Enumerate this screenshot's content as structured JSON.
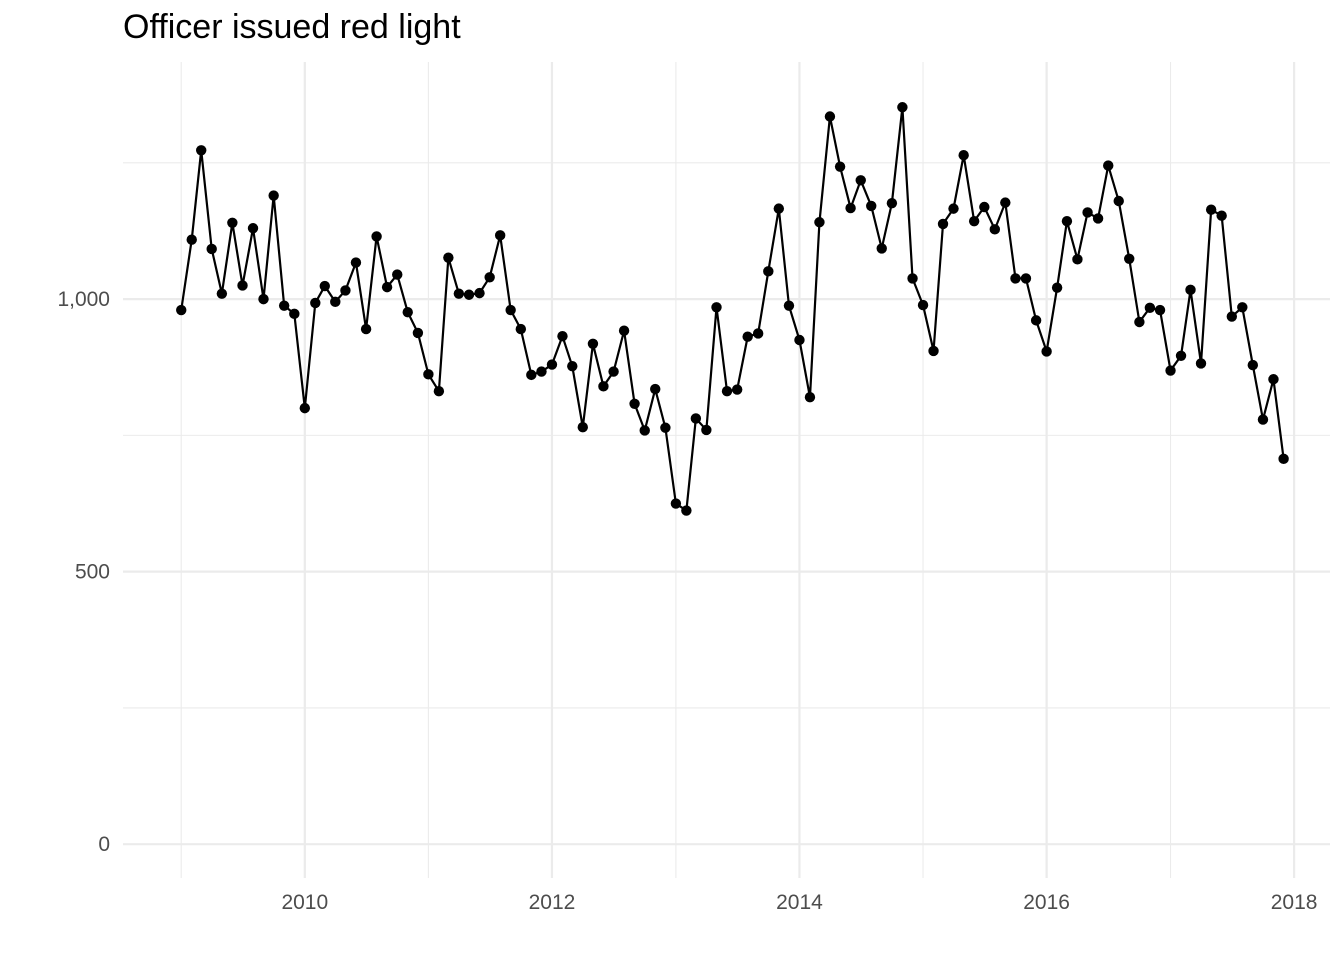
{
  "chart_data": {
    "type": "line",
    "title": "Officer issued red light",
    "xlabel": "",
    "ylabel": "",
    "x_axis": {
      "type": "date",
      "range": [
        "2008-07-13",
        "2018-04-17"
      ],
      "ticks": [
        {
          "date": "2010-01-01",
          "label": "2010"
        },
        {
          "date": "2012-01-01",
          "label": "2012"
        },
        {
          "date": "2014-01-01",
          "label": "2014"
        },
        {
          "date": "2016-01-01",
          "label": "2016"
        },
        {
          "date": "2018-01-01",
          "label": "2018"
        }
      ],
      "minor_ticks": [
        "2009-01-01",
        "2011-01-01",
        "2013-01-01",
        "2015-01-01",
        "2017-01-01"
      ]
    },
    "y_axis": {
      "range": [
        -62,
        1435
      ],
      "ticks": [
        {
          "value": 0,
          "label": "0"
        },
        {
          "value": 500,
          "label": "500"
        },
        {
          "value": 1000,
          "label": "1,000"
        }
      ],
      "minor_ticks": [
        250,
        750,
        1250
      ]
    },
    "grid": true,
    "legend": "none",
    "line_color": "#000000",
    "series": [
      {
        "x": [
          "2009-01-01",
          "2009-02-01",
          "2009-03-01",
          "2009-04-01",
          "2009-05-01",
          "2009-06-01",
          "2009-07-01",
          "2009-08-01",
          "2009-09-01",
          "2009-10-01",
          "2009-11-01",
          "2009-12-01",
          "2010-01-01",
          "2010-02-01",
          "2010-03-01",
          "2010-04-01",
          "2010-05-01",
          "2010-06-01",
          "2010-07-01",
          "2010-08-01",
          "2010-09-01",
          "2010-10-01",
          "2010-11-01",
          "2010-12-01",
          "2011-01-01",
          "2011-02-01",
          "2011-03-01",
          "2011-04-01",
          "2011-05-01",
          "2011-06-01",
          "2011-07-01",
          "2011-08-01",
          "2011-09-01",
          "2011-10-01",
          "2011-11-01",
          "2011-12-01",
          "2012-01-01",
          "2012-02-01",
          "2012-03-01",
          "2012-04-01",
          "2012-05-01",
          "2012-06-01",
          "2012-07-01",
          "2012-08-01",
          "2012-09-01",
          "2012-10-01",
          "2012-11-01",
          "2012-12-01",
          "2013-01-01",
          "2013-02-01",
          "2013-03-01",
          "2013-04-01",
          "2013-05-01",
          "2013-06-01",
          "2013-07-01",
          "2013-08-01",
          "2013-09-01",
          "2013-10-01",
          "2013-11-01",
          "2013-12-01",
          "2014-01-01",
          "2014-02-01",
          "2014-03-01",
          "2014-04-01",
          "2014-05-01",
          "2014-06-01",
          "2014-07-01",
          "2014-08-01",
          "2014-09-01",
          "2014-10-01",
          "2014-11-01",
          "2014-12-01",
          "2015-01-01",
          "2015-02-01",
          "2015-03-01",
          "2015-04-01",
          "2015-05-01",
          "2015-06-01",
          "2015-07-01",
          "2015-08-01",
          "2015-09-01",
          "2015-10-01",
          "2015-11-01",
          "2015-12-01",
          "2016-01-01",
          "2016-02-01",
          "2016-03-01",
          "2016-04-01",
          "2016-05-01",
          "2016-06-01",
          "2016-07-01",
          "2016-08-01",
          "2016-09-01",
          "2016-10-01",
          "2016-11-01",
          "2016-12-01",
          "2017-01-01",
          "2017-02-01",
          "2017-03-01",
          "2017-04-01",
          "2017-05-01",
          "2017-06-01",
          "2017-07-01",
          "2017-08-01",
          "2017-09-01",
          "2017-10-01",
          "2017-11-01",
          "2017-12-01"
        ],
        "y": [
          980,
          1109,
          1273,
          1092,
          1010,
          1140,
          1025,
          1130,
          1000,
          1190,
          988,
          973,
          800,
          993,
          1024,
          995,
          1016,
          1067,
          945,
          1115,
          1022,
          1045,
          976,
          938,
          862,
          831,
          1076,
          1010,
          1008,
          1011,
          1040,
          1117,
          980,
          945,
          861,
          867,
          880,
          932,
          877,
          765,
          918,
          840,
          867,
          942,
          808,
          759,
          835,
          764,
          625,
          612,
          781,
          760,
          985,
          831,
          834,
          931,
          937,
          1051,
          1166,
          988,
          925,
          820,
          1141,
          1335,
          1243,
          1167,
          1218,
          1171,
          1093,
          1176,
          1352,
          1038,
          989,
          905,
          1138,
          1166,
          1264,
          1143,
          1169,
          1128,
          1177,
          1038,
          1038,
          961,
          904,
          1021,
          1143,
          1073,
          1159,
          1148,
          1245,
          1180,
          1074,
          958,
          984,
          980,
          869,
          896,
          1017,
          882,
          1164,
          1153,
          968,
          985,
          879,
          779,
          853,
          707
        ]
      }
    ]
  }
}
